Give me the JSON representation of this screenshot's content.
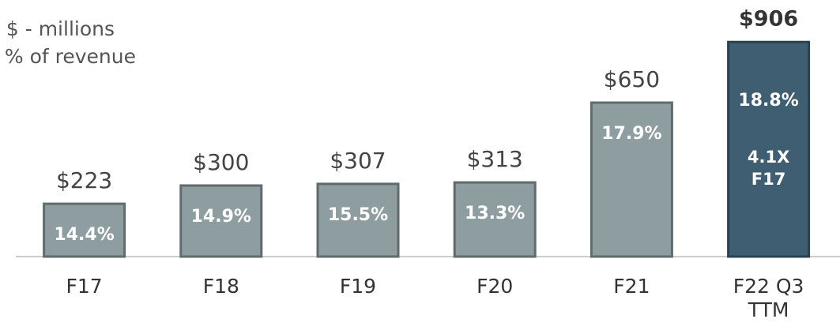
{
  "chart_data": {
    "type": "bar",
    "legend_lines": [
      "$ - millions",
      "% of revenue"
    ],
    "categories": [
      "F17",
      "F18",
      "F19",
      "F20",
      "F21",
      "F22 Q3 TTM"
    ],
    "values": [
      223,
      300,
      307,
      313,
      650,
      906
    ],
    "value_labels": [
      "$223",
      "$300",
      "$307",
      "$313",
      "$650",
      "$906"
    ],
    "percent_of_revenue": {
      "values": [
        14.4,
        14.9,
        15.5,
        13.3,
        17.9,
        18.8
      ],
      "value_labels": [
        "14.4%",
        "14.9%",
        "15.5%",
        "13.3%",
        "17.9%",
        "18.8%"
      ]
    },
    "colors": [
      "#8e9d9f",
      "#8e9d9f",
      "#8e9d9f",
      "#8e9d9f",
      "#8e9d9f",
      "#3f5e72"
    ],
    "annotation": "4.1X F17",
    "ylim": [
      0,
      1000
    ]
  }
}
